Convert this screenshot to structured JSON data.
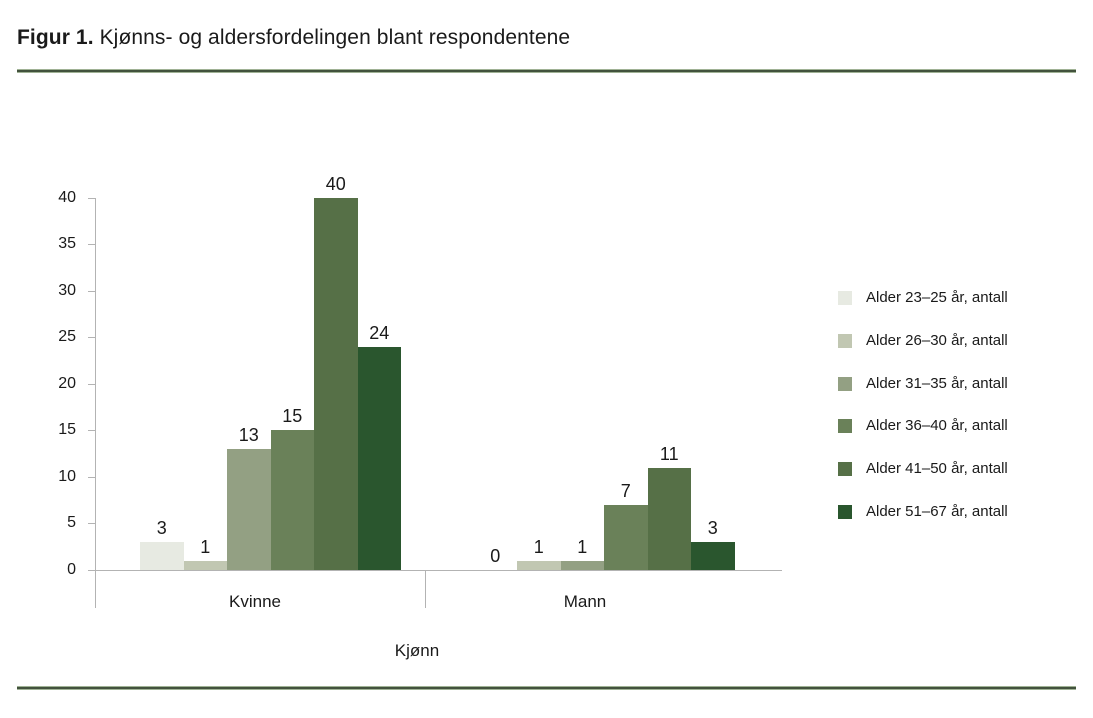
{
  "figure": {
    "title_prefix": "Figur 1.",
    "title_text": "Kjønns- og aldersfordelingen blant respondentene"
  },
  "chart_data": {
    "type": "bar",
    "categories": [
      "Kvinne",
      "Mann"
    ],
    "series": [
      {
        "name": "Alder 23–25 år, antall",
        "color": "#e7eae2",
        "values": [
          3,
          0
        ]
      },
      {
        "name": "Alder 26–30 år, antall",
        "color": "#c1c7b2",
        "values": [
          1,
          1
        ]
      },
      {
        "name": "Alder 31–35 år, antall",
        "color": "#93a083",
        "values": [
          13,
          1
        ]
      },
      {
        "name": "Alder 36–40 år, antall",
        "color": "#6a8159",
        "values": [
          15,
          7
        ]
      },
      {
        "name": "Alder 41–50 år, antall",
        "color": "#567047",
        "values": [
          40,
          11
        ]
      },
      {
        "name": "Alder 51–67 år, antall",
        "color": "#2a562e",
        "values": [
          24,
          3
        ]
      }
    ],
    "xlabel": "Kjønn",
    "ylabel": "",
    "ylim": [
      0,
      40
    ],
    "yticks": [
      0,
      5,
      10,
      15,
      20,
      25,
      30,
      35,
      40
    ],
    "grid": false,
    "legend_position": "right",
    "data_labels": true
  }
}
